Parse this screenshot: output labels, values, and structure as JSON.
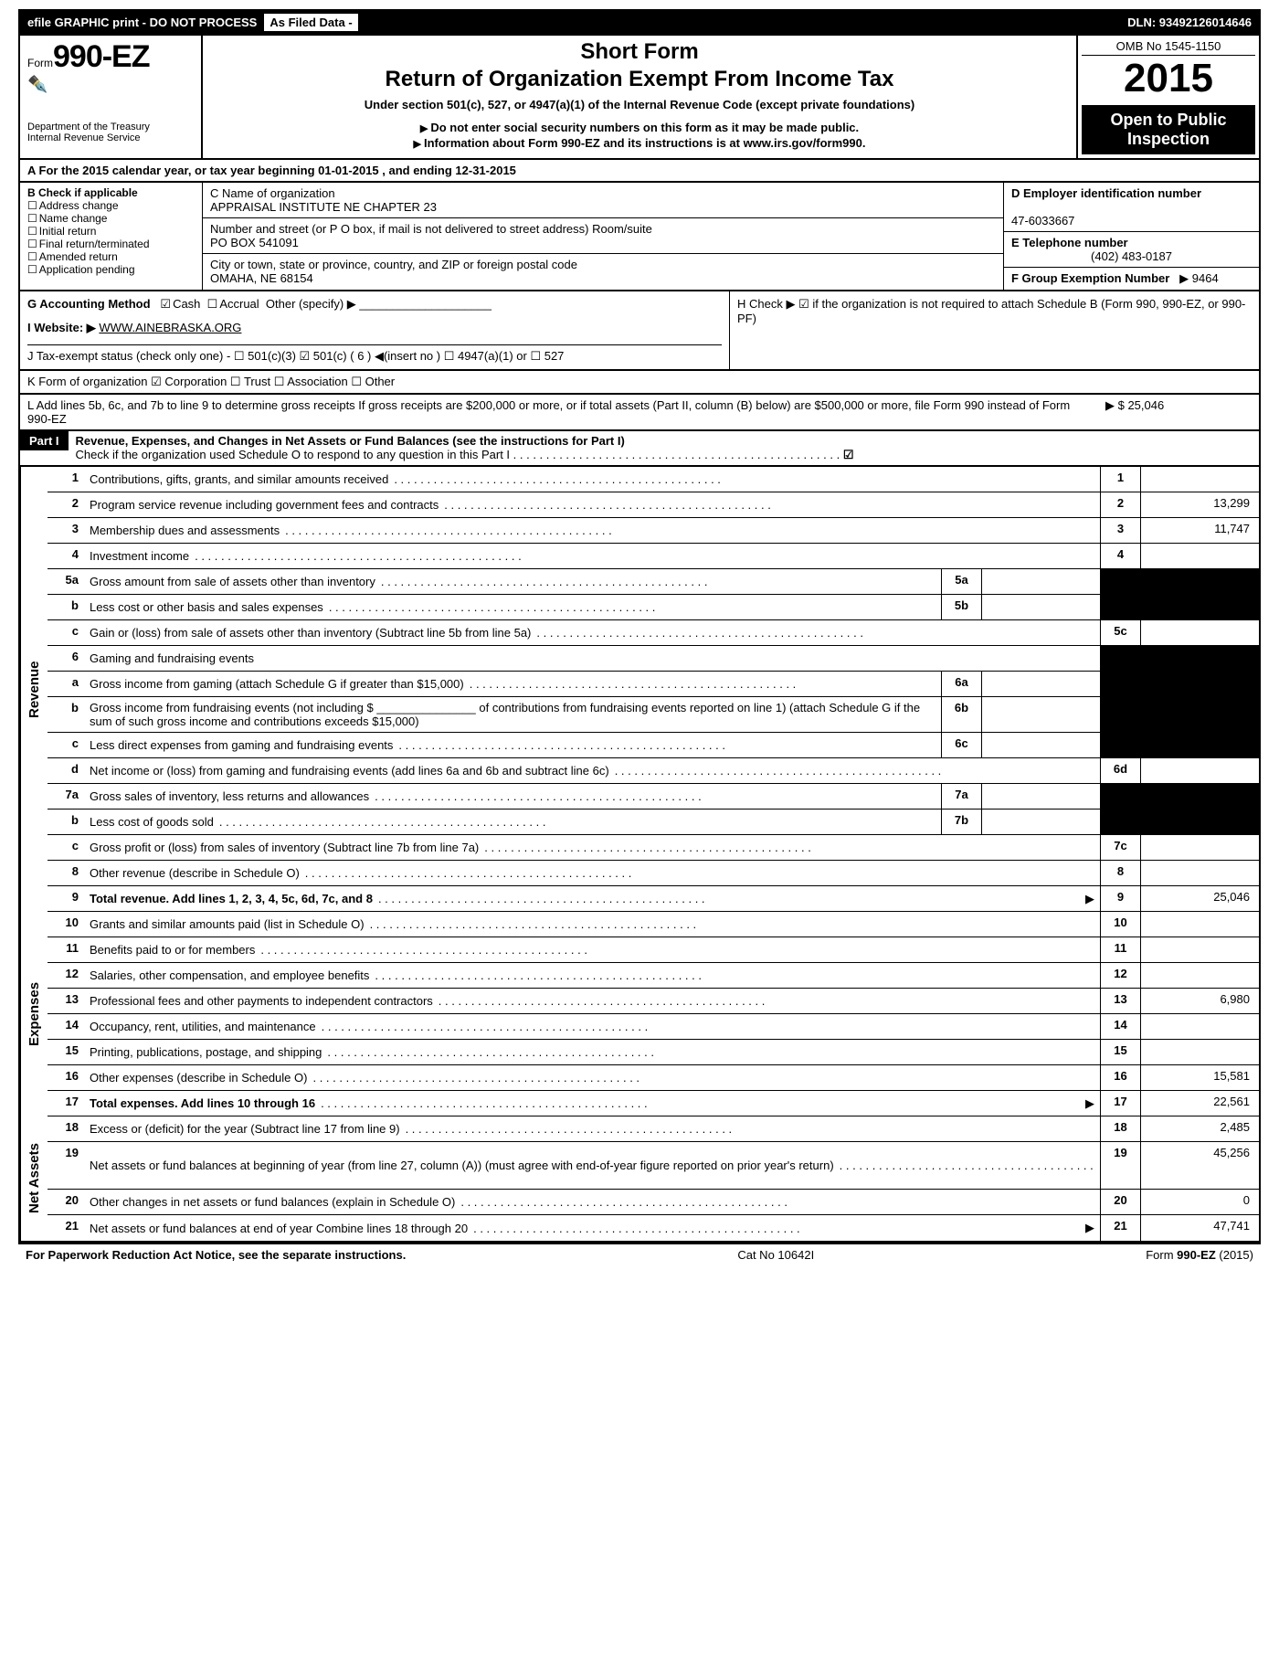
{
  "topbar": {
    "efile": "efile GRAPHIC print - DO NOT PROCESS",
    "asfiled": "As Filed Data -",
    "dln": "DLN: 93492126014646"
  },
  "header": {
    "form_prefix": "Form",
    "form_number": "990-EZ",
    "dept1": "Department of the Treasury",
    "dept2": "Internal Revenue Service",
    "title1": "Short Form",
    "title2": "Return of Organization Exempt From Income Tax",
    "subtitle": "Under section 501(c), 527, or 4947(a)(1) of the Internal Revenue Code (except private foundations)",
    "note1": "Do not enter social security numbers on this form as it may be made public.",
    "note2": "Information about Form 990-EZ and its instructions is at www.irs.gov/form990.",
    "omb": "OMB No 1545-1150",
    "year": "2015",
    "open_public1": "Open to Public",
    "open_public2": "Inspection"
  },
  "rowA": "A  For the 2015 calendar year, or tax year beginning 01-01-2015             , and ending 12-31-2015",
  "colB": {
    "title": "B  Check if applicable",
    "items": [
      "Address change",
      "Name change",
      "Initial return",
      "Final return/terminated",
      "Amended return",
      "Application pending"
    ]
  },
  "colC": {
    "name_label": "C Name of organization",
    "name": "APPRAISAL INSTITUTE NE CHAPTER 23",
    "street_label": "Number and street (or P O box, if mail is not delivered to street address) Room/suite",
    "street": "PO BOX 541091",
    "city_label": "City or town, state or province, country, and ZIP or foreign postal code",
    "city": "OMAHA, NE  68154"
  },
  "colD": {
    "ein_label": "D Employer identification number",
    "ein": "47-6033667",
    "phone_label": "E Telephone number",
    "phone": "(402) 483-0187",
    "group_label": "F Group Exemption Number",
    "group": "9464"
  },
  "rowG": {
    "label": "G Accounting Method",
    "cash": "Cash",
    "accrual": "Accrual",
    "other": "Other (specify)"
  },
  "rowH": "H  Check ▶ ☑ if the organization is not required to attach Schedule B (Form 990, 990-EZ, or 990-PF)",
  "rowI": {
    "label": "I Website: ▶",
    "url": "WWW.AINEBRASKA.ORG"
  },
  "rowJ": "J Tax-exempt status (check only one) - ☐ 501(c)(3) ☑ 501(c) ( 6 ) ◀(insert no ) ☐ 4947(a)(1) or ☐ 527",
  "rowK": "K Form of organization  ☑ Corporation  ☐ Trust  ☐ Association  ☐ Other",
  "rowL": {
    "text": "L Add lines 5b, 6c, and 7b to line 9 to determine gross receipts  If gross receipts are $200,000 or more, or if total assets (Part II, column (B) below) are $500,000 or more, file Form 990 instead of Form 990-EZ",
    "amount": "$ 25,046"
  },
  "partI": {
    "label": "Part I",
    "title": "Revenue, Expenses, and Changes in Net Assets or Fund Balances (see the instructions for Part I)",
    "check_line": "Check if the organization used Schedule O to respond to any question in this Part I"
  },
  "sections": {
    "revenue": "Revenue",
    "expenses": "Expenses",
    "netassets": "Net Assets"
  },
  "lines": {
    "l1": {
      "n": "1",
      "d": "Contributions, gifts, grants, and similar amounts received",
      "k": "1",
      "v": ""
    },
    "l2": {
      "n": "2",
      "d": "Program service revenue including government fees and contracts",
      "k": "2",
      "v": "13,299"
    },
    "l3": {
      "n": "3",
      "d": "Membership dues and assessments",
      "k": "3",
      "v": "11,747"
    },
    "l4": {
      "n": "4",
      "d": "Investment income",
      "k": "4",
      "v": ""
    },
    "l5a": {
      "n": "5a",
      "d": "Gross amount from sale of assets other than inventory",
      "mk": "5a",
      "mv": ""
    },
    "l5b": {
      "n": "b",
      "d": "Less  cost or other basis and sales expenses",
      "mk": "5b",
      "mv": ""
    },
    "l5c": {
      "n": "c",
      "d": "Gain or (loss) from sale of assets other than inventory (Subtract line 5b from line 5a)",
      "k": "5c",
      "v": ""
    },
    "l6": {
      "n": "6",
      "d": "Gaming and fundraising events"
    },
    "l6a": {
      "n": "a",
      "d": "Gross income from gaming (attach Schedule G if greater than $15,000)",
      "mk": "6a",
      "mv": ""
    },
    "l6b": {
      "n": "b",
      "d": "Gross income from fundraising events (not including $ _______________ of contributions from fundraising events reported on line 1) (attach Schedule G if the sum of such gross income and contributions exceeds $15,000)",
      "mk": "6b",
      "mv": ""
    },
    "l6c": {
      "n": "c",
      "d": "Less  direct expenses from gaming and fundraising events",
      "mk": "6c",
      "mv": ""
    },
    "l6d": {
      "n": "d",
      "d": "Net income or (loss) from gaming and fundraising events (add lines 6a and 6b and subtract line 6c)",
      "k": "6d",
      "v": ""
    },
    "l7a": {
      "n": "7a",
      "d": "Gross sales of inventory, less returns and allowances",
      "mk": "7a",
      "mv": ""
    },
    "l7b": {
      "n": "b",
      "d": "Less  cost of goods sold",
      "mk": "7b",
      "mv": ""
    },
    "l7c": {
      "n": "c",
      "d": "Gross profit or (loss) from sales of inventory (Subtract line 7b from line 7a)",
      "k": "7c",
      "v": ""
    },
    "l8": {
      "n": "8",
      "d": "Other revenue (describe in Schedule O)",
      "k": "8",
      "v": ""
    },
    "l9": {
      "n": "9",
      "d": "Total revenue. Add lines 1, 2, 3, 4, 5c, 6d, 7c, and 8",
      "k": "9",
      "v": "25,046",
      "bold": true,
      "arrow": true
    },
    "l10": {
      "n": "10",
      "d": "Grants and similar amounts paid (list in Schedule O)",
      "k": "10",
      "v": ""
    },
    "l11": {
      "n": "11",
      "d": "Benefits paid to or for members",
      "k": "11",
      "v": ""
    },
    "l12": {
      "n": "12",
      "d": "Salaries, other compensation, and employee benefits",
      "k": "12",
      "v": ""
    },
    "l13": {
      "n": "13",
      "d": "Professional fees and other payments to independent contractors",
      "k": "13",
      "v": "6,980"
    },
    "l14": {
      "n": "14",
      "d": "Occupancy, rent, utilities, and maintenance",
      "k": "14",
      "v": ""
    },
    "l15": {
      "n": "15",
      "d": "Printing, publications, postage, and shipping",
      "k": "15",
      "v": ""
    },
    "l16": {
      "n": "16",
      "d": "Other expenses (describe in Schedule O)",
      "k": "16",
      "v": "15,581"
    },
    "l17": {
      "n": "17",
      "d": "Total expenses. Add lines 10 through 16",
      "k": "17",
      "v": "22,561",
      "bold": true,
      "arrow": true
    },
    "l18": {
      "n": "18",
      "d": "Excess or (deficit) for the year (Subtract line 17 from line 9)",
      "k": "18",
      "v": "2,485"
    },
    "l19": {
      "n": "19",
      "d": "Net assets or fund balances at beginning of year (from line 27, column (A)) (must agree with end-of-year figure reported on prior year's return)",
      "k": "19",
      "v": "45,256"
    },
    "l20": {
      "n": "20",
      "d": "Other changes in net assets or fund balances (explain in Schedule O)",
      "k": "20",
      "v": "0"
    },
    "l21": {
      "n": "21",
      "d": "Net assets or fund balances at end of year  Combine lines 18 through 20",
      "k": "21",
      "v": "47,741",
      "arrow": true
    }
  },
  "footer": {
    "left": "For Paperwork Reduction Act Notice, see the separate instructions.",
    "mid": "Cat No 10642I",
    "right": "Form 990-EZ (2015)"
  }
}
